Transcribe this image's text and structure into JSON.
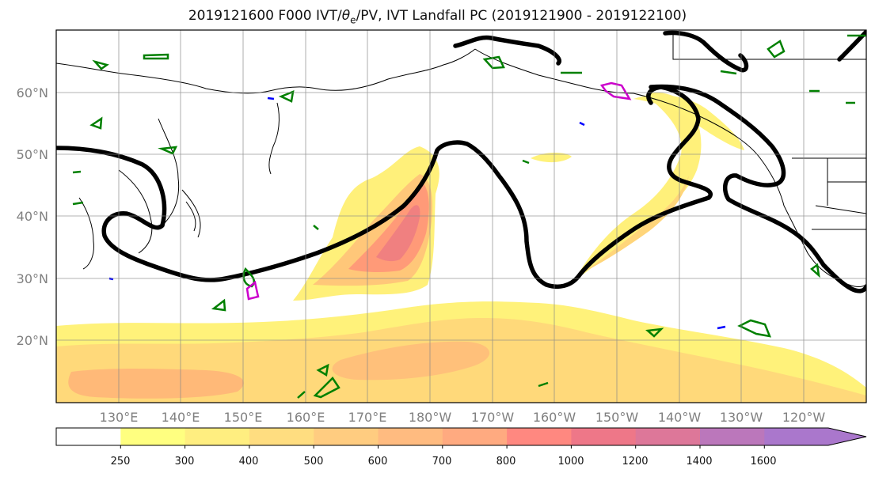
{
  "title": {
    "prefix": "2019121600 F000 IVT/",
    "theta": "θ",
    "theta_sub": "e",
    "suffix": "/PV, IVT Landfall PC (2019121900 - 2019122100)"
  },
  "latitude_labels": [
    "60°N",
    "50°N",
    "40°N",
    "30°N",
    "20°N"
  ],
  "longitude_labels": [
    "130°E",
    "140°E",
    "150°E",
    "160°E",
    "170°E",
    "180°W",
    "170°W",
    "160°W",
    "150°W",
    "140°W",
    "130°W",
    "120°W"
  ],
  "colorbar": {
    "levels": [
      "250",
      "300",
      "400",
      "500",
      "600",
      "700",
      "800",
      "1000",
      "1200",
      "1400",
      "1600"
    ],
    "colors": [
      "#ffffff",
      "#ffff80",
      "#ffee80",
      "#ffdd80",
      "#ffcc80",
      "#ffbb80",
      "#ffaa80",
      "#ff8880",
      "#ee7788",
      "#dd7799",
      "#bb77bb",
      "#aa77cc"
    ]
  },
  "layers": {
    "ivt_fill_color": "#ffe066",
    "ivt_core_color": "#ff8870",
    "landfall_contour_color": "#000000",
    "theta_contour_color": "#008000",
    "pv_positive_color": "#cc00cc",
    "pv_negative_color": "#0000ff",
    "coastline_color": "#000000"
  }
}
